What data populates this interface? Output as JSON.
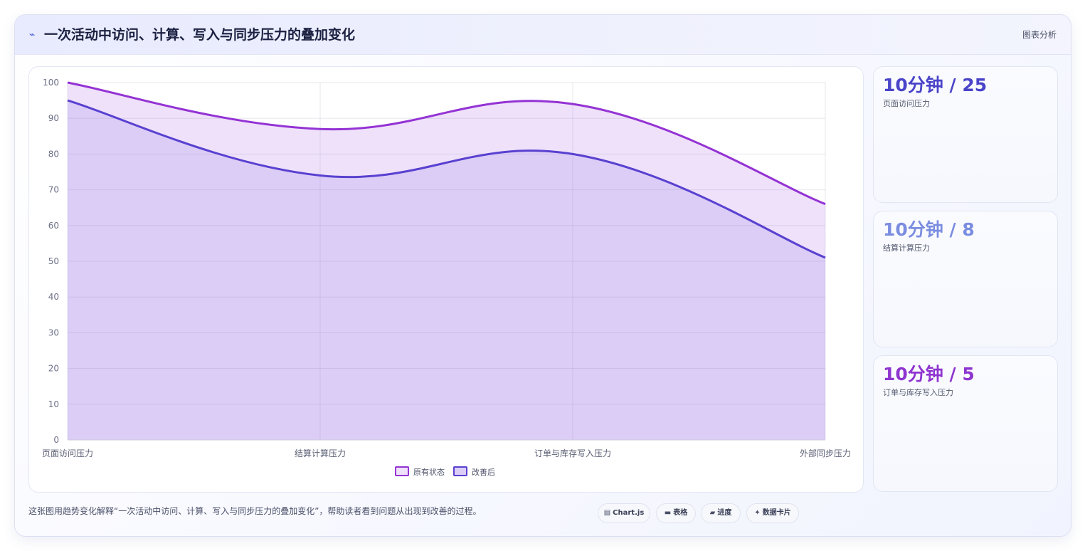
{
  "header": {
    "icon": "⌁",
    "title": "一次活动中访问、计算、写入与同步压力的叠加变化",
    "link_label": "图表分析"
  },
  "stats": [
    {
      "value": "10分钟 / 25",
      "label": "页面访问压力",
      "color": "#4a44c9"
    },
    {
      "value": "10分钟 / 8",
      "label": "结算计算压力",
      "color": "#7b8de0"
    },
    {
      "value": "10分钟 / 5",
      "label": "订单与库存写入压力",
      "color": "#8e34cf"
    }
  ],
  "caption": "这张图用趋势变化解释“一次活动中访问、计算、写入与同步压力的叠加变化”，帮助读者看到问题从出现到改善的过程。",
  "chips": [
    {
      "icon": "chart-icon",
      "glyph": "▤",
      "label": "Chart.js"
    },
    {
      "icon": "table-icon",
      "glyph": "▬",
      "label": "表格"
    },
    {
      "icon": "progress-icon",
      "glyph": "▰",
      "label": "进度"
    },
    {
      "icon": "data-card-icon",
      "glyph": "✦",
      "label": "数据卡片"
    }
  ],
  "chart_data": {
    "type": "area",
    "categories": [
      "页面访问压力",
      "结算计算压力",
      "订单与库存写入压力",
      "外部同步压力"
    ],
    "series": [
      {
        "name": "原有状态",
        "values": [
          100,
          87,
          94,
          66
        ],
        "color": "#9433d4",
        "fill": "#efe1fa"
      },
      {
        "name": "改善后",
        "values": [
          95,
          74,
          80,
          51
        ],
        "color": "#5941d0",
        "fill": "#dccdf7"
      }
    ],
    "ylim": [
      0,
      100
    ],
    "yticks": [
      0,
      10,
      20,
      30,
      40,
      50,
      60,
      70,
      80,
      90,
      100
    ],
    "grid": true,
    "legend": "bottom"
  }
}
